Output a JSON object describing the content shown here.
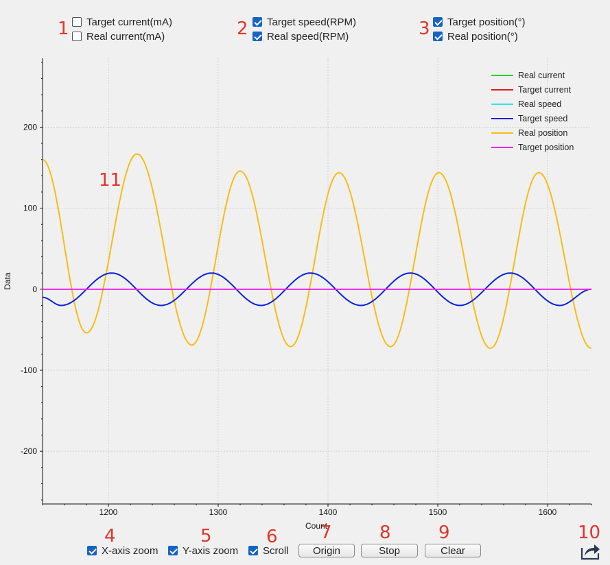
{
  "annotations": [
    "1",
    "2",
    "3",
    "4",
    "5",
    "6",
    "7",
    "8",
    "9",
    "10",
    "11"
  ],
  "series_toggles": [
    {
      "label": "Target current(mA)",
      "checked": false
    },
    {
      "label": "Real current(mA)",
      "checked": false
    },
    {
      "label": "Target speed(RPM)",
      "checked": true
    },
    {
      "label": "Real speed(RPM)",
      "checked": true
    },
    {
      "label": "Target position(°)",
      "checked": true
    },
    {
      "label": "Real position(°)",
      "checked": true
    }
  ],
  "controls": {
    "x_zoom": {
      "label": "X-axis zoom",
      "checked": true
    },
    "y_zoom": {
      "label": "Y-axis zoom",
      "checked": true
    },
    "scroll": {
      "label": "Scroll",
      "checked": true
    },
    "origin_label": "Origin",
    "stop_label": "Stop",
    "clear_label": "Clear"
  },
  "colors": {
    "real_current": "#22d322",
    "target_current": "#e31a1a",
    "real_speed": "#2ee6e6",
    "target_speed": "#0a22d8",
    "real_position": "#f6bd16",
    "target_position": "#ee22ee"
  },
  "chart_data": {
    "type": "line",
    "xlabel": "Count",
    "ylabel": "Data",
    "xlim": [
      1140,
      1640
    ],
    "ylim": [
      -265,
      285
    ],
    "xticks": [
      1200,
      1300,
      1400,
      1500,
      1600
    ],
    "yticks": [
      -200,
      -100,
      0,
      100,
      200
    ],
    "x_tick_labels": [
      "1200",
      "1300",
      "1400",
      "1500",
      "1600"
    ],
    "y_tick_labels": [
      "-200",
      "-100",
      "0",
      "100",
      "200"
    ],
    "grid": true,
    "legend": [
      "Real current",
      "Target current",
      "Real speed",
      "Target speed",
      "Real position",
      "Target position"
    ],
    "series": [
      {
        "name": "Real position",
        "color": "#f6bd16",
        "x": [
          1140,
          1180,
          1226,
          1276,
          1320,
          1366,
          1410,
          1457,
          1501,
          1548,
          1592,
          1640
        ],
        "y": [
          160,
          -54,
          167,
          -69,
          146,
          -71,
          144,
          -71,
          144,
          -73,
          144,
          -73
        ]
      },
      {
        "name": "Target speed",
        "color": "#0a22d8",
        "x": [
          1140,
          1157,
          1203,
          1248,
          1294,
          1339,
          1384,
          1430,
          1475,
          1520,
          1566,
          1611,
          1640
        ],
        "y": [
          -10,
          -20,
          20,
          -20,
          20,
          -20,
          20,
          -20,
          20,
          -20,
          20,
          -20,
          0
        ]
      },
      {
        "name": "Target position",
        "color": "#ee22ee",
        "x": [
          1140,
          1640
        ],
        "y": [
          0,
          0
        ]
      }
    ]
  }
}
